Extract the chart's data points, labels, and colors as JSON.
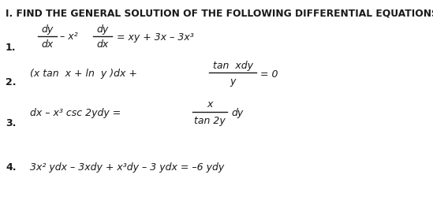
{
  "title": "I. FIND THE GENERAL SOLUTION OF THE FOLLOWING DIFFERENTIAL EQUATIONS:",
  "title_fontsize": 8.8,
  "title_fontweight": "bold",
  "background_color": "#ffffff",
  "text_color": "#1a1a1a",
  "font_family": "DejaVu Sans",
  "fs": 9.0,
  "fs_bold": 9.0,
  "item1": {
    "num": "1.",
    "eq_rhs": "= xy + 3x – 3x³"
  },
  "item2": {
    "num": "2.",
    "lhs": "(x tan x + ln y )dx +",
    "frac_num": "tan  xdy",
    "frac_den": "y",
    "rhs": "= 0"
  },
  "item3": {
    "num": "3.",
    "lhs": "dx – x³ csc 2ydy =",
    "frac_num": "x",
    "frac_den": "tan 2y",
    "rhs": "dy"
  },
  "item4": {
    "num": "4.",
    "eq": "3x² ydx – 3xdy + x³dy – 3 ydx = –6 ydy"
  }
}
